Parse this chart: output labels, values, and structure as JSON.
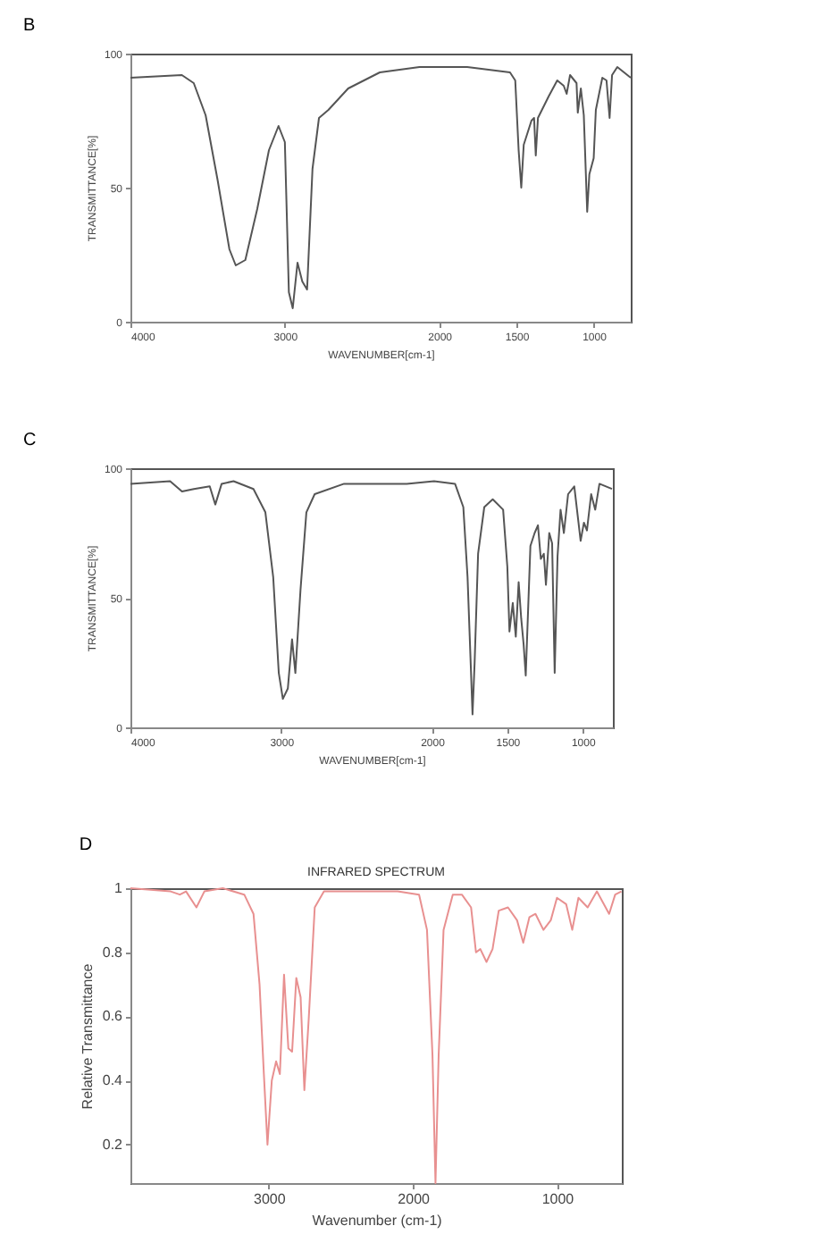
{
  "chart_data": [
    {
      "type": "line",
      "title": "B",
      "xlabel": "WAVENUMBER[cm-1]",
      "ylabel": "TRANSMITTANCE[%]",
      "xlim": [
        4000,
        760
      ],
      "ylim": [
        0,
        100
      ],
      "xticks": [
        4000,
        3000,
        2000,
        1500,
        1000
      ],
      "yticks": [
        0,
        50,
        100
      ],
      "x": [
        4000,
        3667,
        3590,
        3513,
        3436,
        3359,
        3318,
        3256,
        3179,
        3103,
        3041,
        3000,
        2974,
        2949,
        2918,
        2887,
        2856,
        2821,
        2779,
        2718,
        2590,
        2385,
        2128,
        1819,
        1542,
        1508,
        1486,
        1469,
        1453,
        1403,
        1386,
        1375,
        1361,
        1292,
        1236,
        1194,
        1175,
        1153,
        1111,
        1103,
        1083,
        1064,
        1042,
        1028,
        1000,
        986,
        944,
        917,
        897,
        881,
        847,
        760
      ],
      "series": [
        {
          "color": "#555555",
          "values": [
            91,
            92,
            89,
            77,
            53,
            27,
            21,
            23,
            42,
            64,
            73,
            67,
            11,
            5,
            22,
            15,
            12,
            57,
            76,
            79,
            87,
            93,
            95,
            95,
            93,
            90,
            64,
            50,
            66,
            75,
            76,
            62,
            76,
            84,
            90,
            88,
            85,
            92,
            89,
            78,
            87,
            77,
            41,
            55,
            61,
            79,
            91,
            90,
            76,
            92,
            95,
            91
          ]
        }
      ]
    },
    {
      "type": "line",
      "title": "C",
      "xlabel": "WAVENUMBER[cm-1]",
      "ylabel": "TRANSMITTANCE[%]",
      "xlim": [
        4000,
        800
      ],
      "ylim": [
        0,
        100
      ],
      "xticks": [
        4000,
        3000,
        2000,
        1500,
        1000
      ],
      "yticks": [
        0,
        50,
        100
      ],
      "x": [
        4000,
        3737,
        3658,
        3579,
        3474,
        3437,
        3395,
        3316,
        3184,
        3105,
        3053,
        3016,
        2989,
        2956,
        2928,
        2906,
        2872,
        2833,
        2778,
        2583,
        2167,
        1986,
        1847,
        1792,
        1764,
        1742,
        1731,
        1717,
        1694,
        1653,
        1597,
        1528,
        1500,
        1486,
        1464,
        1444,
        1425,
        1408,
        1392,
        1378,
        1347,
        1319,
        1297,
        1278,
        1258,
        1244,
        1222,
        1203,
        1186,
        1167,
        1147,
        1125,
        1097,
        1056,
        1014,
        992,
        972,
        944,
        917,
        889,
        806
      ],
      "series": [
        {
          "color": "#555555",
          "values": [
            94,
            95,
            91,
            92,
            93,
            86,
            94,
            95,
            92,
            83,
            58,
            21,
            11,
            15,
            34,
            21,
            53,
            83,
            90,
            94,
            94,
            95,
            94,
            85,
            58,
            23,
            5,
            25,
            67,
            85,
            88,
            84,
            62,
            37,
            48,
            35,
            56,
            42,
            32,
            20,
            70,
            75,
            78,
            65,
            67,
            55,
            75,
            71,
            21,
            66,
            84,
            75,
            90,
            93,
            72,
            79,
            76,
            90,
            84,
            94,
            92
          ]
        }
      ]
    },
    {
      "type": "line",
      "title": "INFRARED SPECTRUM",
      "annotations": [
        "D"
      ],
      "xlabel": "Wavenumber (cm-1)",
      "ylabel": "Relative Transmittance",
      "xlim": [
        3960,
        550
      ],
      "ylim": [
        0.08,
        1
      ],
      "xticks": [
        3000,
        2000,
        1000
      ],
      "yticks": [
        0.2,
        0.4,
        0.6,
        0.8,
        1
      ],
      "x": [
        3960,
        3681,
        3617,
        3574,
        3502,
        3447,
        3319,
        3170,
        3106,
        3064,
        3034,
        3009,
        2979,
        2949,
        2923,
        2894,
        2864,
        2838,
        2809,
        2779,
        2753,
        2723,
        2681,
        2617,
        2106,
        1957,
        1902,
        1864,
        1843,
        1821,
        1787,
        1723,
        1660,
        1596,
        1562,
        1532,
        1489,
        1447,
        1404,
        1340,
        1277,
        1234,
        1191,
        1149,
        1094,
        1043,
        1000,
        936,
        894,
        851,
        787,
        723,
        638,
        596,
        553
      ],
      "series": [
        {
          "color": "#e89090",
          "values": [
            1.0,
            0.99,
            0.98,
            0.99,
            0.94,
            0.99,
            1.0,
            0.98,
            0.92,
            0.7,
            0.42,
            0.2,
            0.4,
            0.46,
            0.42,
            0.73,
            0.5,
            0.49,
            0.72,
            0.66,
            0.37,
            0.59,
            0.94,
            0.99,
            0.99,
            0.98,
            0.87,
            0.48,
            0.08,
            0.48,
            0.87,
            0.98,
            0.98,
            0.94,
            0.8,
            0.81,
            0.77,
            0.81,
            0.93,
            0.94,
            0.9,
            0.83,
            0.91,
            0.92,
            0.87,
            0.9,
            0.97,
            0.95,
            0.87,
            0.97,
            0.94,
            0.99,
            0.92,
            0.98,
            0.99
          ]
        }
      ]
    }
  ]
}
